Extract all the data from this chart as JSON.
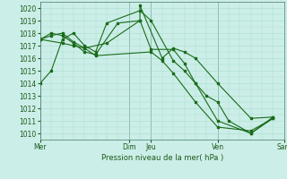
{
  "title": "Pression niveau de la mer( hPa )",
  "bg_color": "#cceee8",
  "grid_color": "#aaddcc",
  "line_color": "#1a6b1a",
  "ylim": [
    1009.5,
    1020.5
  ],
  "yticks": [
    1010,
    1011,
    1012,
    1013,
    1014,
    1015,
    1016,
    1017,
    1018,
    1019,
    1020
  ],
  "xlim": [
    0,
    11
  ],
  "vline_x": [
    0,
    4,
    5,
    8,
    11
  ],
  "xtick_positions": [
    0,
    4,
    5,
    8,
    11
  ],
  "xtick_labels": [
    "Mer",
    "Dim",
    "Jeu",
    "Ven",
    "Sam"
  ],
  "series": [
    [
      1014.0,
      1015.0,
      1017.5,
      1018.0,
      1017.0,
      1016.5,
      1018.8,
      1019.8,
      1019.0,
      1015.8,
      1015.0,
      1014.0,
      1013.0,
      1012.5,
      1011.0,
      1010.0,
      1011.2
    ],
    [
      1017.5,
      1017.8,
      1018.0,
      1017.3,
      1016.8,
      1017.2,
      1019.0,
      1020.2,
      1016.0,
      1016.8,
      1016.5,
      1016.0,
      1014.0,
      1011.2,
      1011.3
    ],
    [
      1017.5,
      1018.0,
      1017.8,
      1017.2,
      1016.5,
      1016.3,
      1018.8,
      1019.0,
      1016.7,
      1016.7,
      1015.6,
      1014.0,
      1011.0,
      1010.0,
      1011.3
    ],
    [
      1017.5,
      1017.2,
      1017.0,
      1016.8,
      1016.2,
      1016.5,
      1015.8,
      1014.8,
      1012.5,
      1010.5,
      1010.2,
      1011.2
    ]
  ],
  "series_x": [
    [
      0,
      0.5,
      1,
      1.5,
      2,
      2.5,
      3,
      4.5,
      5,
      6,
      6.5,
      7,
      7.5,
      8,
      8.5,
      9.5,
      10.5
    ],
    [
      0,
      0.5,
      1,
      1.5,
      2,
      3,
      4.5,
      4.5,
      5.5,
      6,
      6.5,
      7,
      8,
      9.5,
      10.5
    ],
    [
      0,
      0.5,
      1,
      1.5,
      2,
      2.5,
      3.5,
      4.5,
      5,
      6,
      6.5,
      7,
      8,
      9.5,
      10.5
    ],
    [
      0,
      1,
      1.5,
      2,
      2.5,
      5,
      5.5,
      6,
      7,
      8,
      9.5,
      10.5
    ]
  ]
}
